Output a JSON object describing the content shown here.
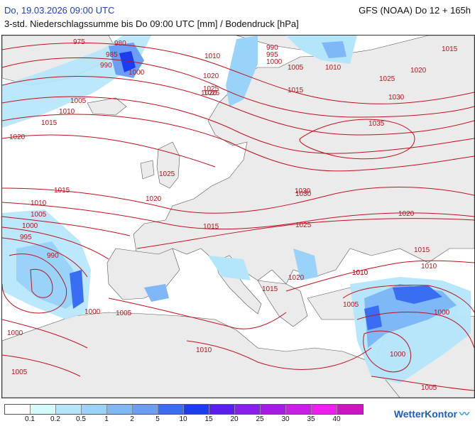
{
  "header": {
    "date": "Do, 19.03.2026 09:00 UTC",
    "model": "GFS (NOAA) Do 12 + 165h",
    "description": "3-std. Niederschlagssumme bis Do 09:00 UTC [mm] / Bodendruck [hPa]"
  },
  "map": {
    "sea_color": "#ffffff",
    "land_color": "#ebebeb",
    "isobar_color": "#c0101c",
    "isobar_labels": [
      "975",
      "980",
      "985",
      "990",
      "1000",
      "1005",
      "1010",
      "1015",
      "1020",
      "990",
      "995",
      "1000",
      "1005",
      "1010",
      "1015",
      "1020",
      "1025",
      "1030",
      "1025",
      "1020",
      "1010",
      "1015",
      "1020",
      "1025",
      "1030",
      "1035",
      "1025",
      "1015",
      "1020",
      "1010",
      "1005",
      "1000",
      "995",
      "990",
      "1030",
      "1025",
      "1015",
      "1020",
      "1015",
      "1000",
      "1005",
      "1010",
      "1020",
      "1010",
      "1015",
      "1010",
      "1005",
      "1000",
      "1000",
      "1005",
      "1000",
      "1005",
      "1010"
    ]
  },
  "legend": {
    "colors": [
      "#ffffff",
      "#d4fafc",
      "#b4e6fb",
      "#9ad3f9",
      "#7fb8f7",
      "#6b9ef5",
      "#3a6ef2",
      "#1c3cf2",
      "#5a1ef0",
      "#8a1eec",
      "#a91ae8",
      "#c81ee6",
      "#ee1ef0",
      "#cc14c4"
    ],
    "ticks": [
      "0.1",
      "0.2",
      "0.5",
      "1",
      "2",
      "5",
      "10",
      "15",
      "20",
      "25",
      "30",
      "35",
      "40"
    ]
  },
  "branding": {
    "name": "WetterKontor"
  }
}
